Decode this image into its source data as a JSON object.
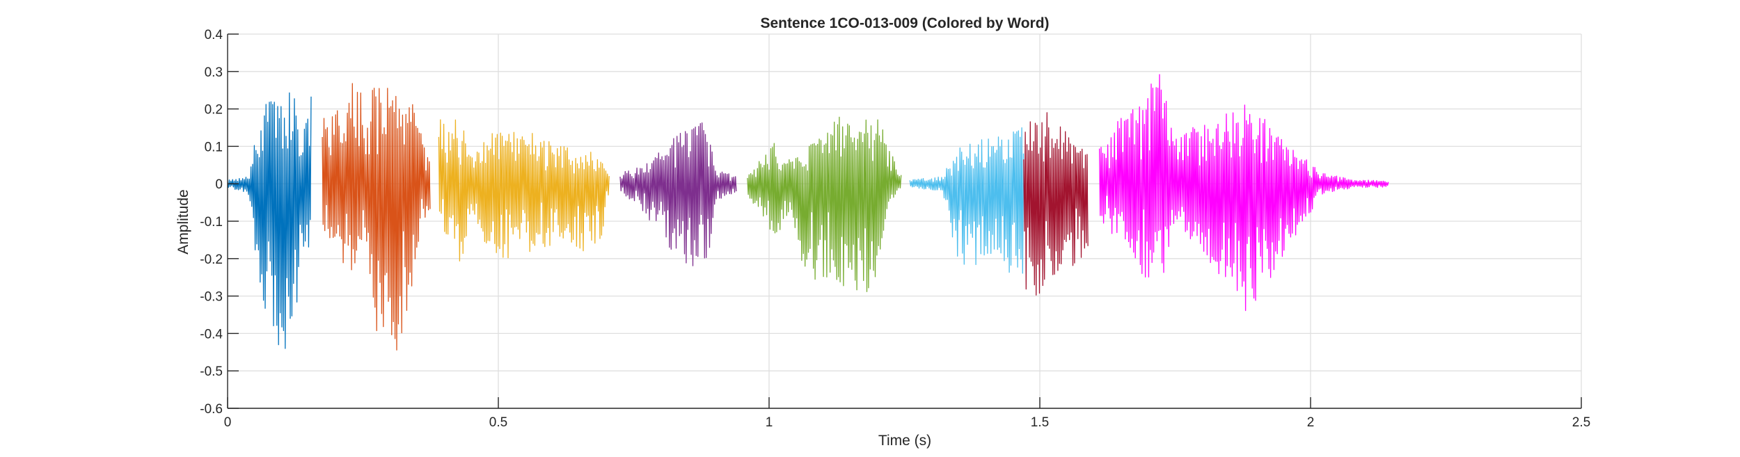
{
  "chart_data": {
    "type": "line",
    "title": "Sentence 1CO-013-009 (Colored by Word)",
    "xlabel": "Time (s)",
    "ylabel": "Amplitude",
    "xlim": [
      0,
      2.5
    ],
    "ylim": [
      -0.6,
      0.4
    ],
    "xticks": [
      0,
      0.5,
      1,
      1.5,
      2,
      2.5
    ],
    "xtick_labels": [
      "0",
      "0.5",
      "1",
      "1.5",
      "2",
      "2.5"
    ],
    "yticks": [
      -0.6,
      -0.5,
      -0.4,
      -0.3,
      -0.2,
      -0.1,
      0,
      0.1,
      0.2,
      0.3,
      0.4
    ],
    "ytick_labels": [
      "-0.6",
      "-0.5",
      "-0.4",
      "-0.3",
      "-0.2",
      "-0.1",
      "0",
      "0.1",
      "0.2",
      "0.3",
      "0.4"
    ],
    "grid": true,
    "legend": false,
    "segments": [
      {
        "color": "#0072BD",
        "t_start": 0.0,
        "t_end": 0.155,
        "envelope": [
          [
            0.0,
            0.01,
            -0.01
          ],
          [
            0.04,
            0.02,
            -0.03
          ],
          [
            0.05,
            0.12,
            -0.18
          ],
          [
            0.07,
            0.22,
            -0.38
          ],
          [
            0.095,
            0.24,
            -0.45
          ],
          [
            0.12,
            0.25,
            -0.43
          ],
          [
            0.14,
            0.15,
            -0.2
          ],
          [
            0.155,
            0.26,
            -0.2
          ]
        ]
      },
      {
        "color": "#D95319",
        "t_start": 0.175,
        "t_end": 0.375,
        "envelope": [
          [
            0.175,
            0.2,
            -0.17
          ],
          [
            0.2,
            0.2,
            -0.15
          ],
          [
            0.22,
            0.18,
            -0.24
          ],
          [
            0.23,
            0.33,
            -0.28
          ],
          [
            0.25,
            0.24,
            -0.18
          ],
          [
            0.27,
            0.26,
            -0.38
          ],
          [
            0.29,
            0.26,
            -0.5
          ],
          [
            0.31,
            0.25,
            -0.48
          ],
          [
            0.33,
            0.28,
            -0.35
          ],
          [
            0.35,
            0.17,
            -0.2
          ],
          [
            0.36,
            0.12,
            -0.1
          ],
          [
            0.375,
            0.08,
            -0.08
          ]
        ]
      },
      {
        "color": "#EDB120",
        "t_start": 0.39,
        "t_end": 0.705,
        "envelope": [
          [
            0.39,
            0.18,
            -0.15
          ],
          [
            0.41,
            0.19,
            -0.14
          ],
          [
            0.43,
            0.17,
            -0.24
          ],
          [
            0.45,
            0.08,
            -0.06
          ],
          [
            0.48,
            0.14,
            -0.18
          ],
          [
            0.52,
            0.15,
            -0.21
          ],
          [
            0.57,
            0.14,
            -0.18
          ],
          [
            0.62,
            0.1,
            -0.15
          ],
          [
            0.66,
            0.09,
            -0.2
          ],
          [
            0.69,
            0.08,
            -0.15
          ],
          [
            0.705,
            0.02,
            -0.02
          ]
        ]
      },
      {
        "color": "#7E2F8E",
        "t_start": 0.725,
        "t_end": 0.94,
        "envelope": [
          [
            0.725,
            0.03,
            -0.03
          ],
          [
            0.77,
            0.05,
            -0.08
          ],
          [
            0.82,
            0.12,
            -0.18
          ],
          [
            0.86,
            0.16,
            -0.23
          ],
          [
            0.885,
            0.17,
            -0.24
          ],
          [
            0.9,
            0.04,
            -0.05
          ],
          [
            0.94,
            0.02,
            -0.02
          ]
        ]
      },
      {
        "color": "#77AC30",
        "t_start": 0.96,
        "t_end": 1.245,
        "envelope": [
          [
            0.96,
            0.02,
            -0.03
          ],
          [
            0.99,
            0.08,
            -0.1
          ],
          [
            1.01,
            0.11,
            -0.15
          ],
          [
            1.04,
            0.06,
            -0.08
          ],
          [
            1.07,
            0.1,
            -0.27
          ],
          [
            1.12,
            0.18,
            -0.29
          ],
          [
            1.17,
            0.18,
            -0.29
          ],
          [
            1.2,
            0.19,
            -0.29
          ],
          [
            1.22,
            0.1,
            -0.05
          ],
          [
            1.245,
            0.02,
            -0.02
          ]
        ]
      },
      {
        "color": "#4DBEEE",
        "t_start": 1.26,
        "t_end": 1.47,
        "envelope": [
          [
            1.26,
            0.01,
            -0.01
          ],
          [
            1.32,
            0.02,
            -0.02
          ],
          [
            1.35,
            0.1,
            -0.22
          ],
          [
            1.4,
            0.13,
            -0.22
          ],
          [
            1.45,
            0.15,
            -0.24
          ],
          [
            1.47,
            0.16,
            -0.3
          ]
        ]
      },
      {
        "color": "#A2142F",
        "t_start": 1.47,
        "t_end": 1.59,
        "envelope": [
          [
            1.47,
            0.16,
            -0.28
          ],
          [
            1.5,
            0.22,
            -0.31
          ],
          [
            1.53,
            0.17,
            -0.25
          ],
          [
            1.56,
            0.12,
            -0.22
          ],
          [
            1.59,
            0.1,
            -0.18
          ]
        ]
      },
      {
        "color": "#FF00FF",
        "t_start": 1.61,
        "t_end": 2.145,
        "envelope": [
          [
            1.61,
            0.1,
            -0.1
          ],
          [
            1.66,
            0.2,
            -0.18
          ],
          [
            1.69,
            0.22,
            -0.25
          ],
          [
            1.72,
            0.31,
            -0.29
          ],
          [
            1.75,
            0.12,
            -0.11
          ],
          [
            1.78,
            0.15,
            -0.15
          ],
          [
            1.83,
            0.18,
            -0.25
          ],
          [
            1.87,
            0.22,
            -0.38
          ],
          [
            1.9,
            0.2,
            -0.33
          ],
          [
            1.94,
            0.13,
            -0.22
          ],
          [
            1.98,
            0.08,
            -0.13
          ],
          [
            2.02,
            0.03,
            -0.03
          ],
          [
            2.08,
            0.01,
            -0.01
          ],
          [
            2.145,
            0.01,
            -0.01
          ]
        ]
      }
    ]
  }
}
